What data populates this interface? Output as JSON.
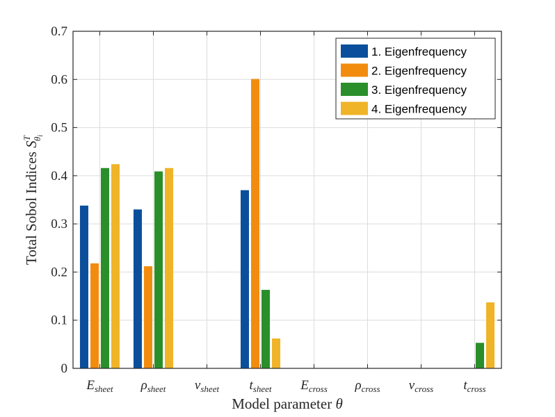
{
  "chart_data": {
    "type": "bar",
    "categories": [
      {
        "base": "E",
        "sub": "sheet"
      },
      {
        "base": "ρ",
        "sub": "sheet"
      },
      {
        "base": "ν",
        "sub": "sheet"
      },
      {
        "base": "t",
        "sub": "sheet"
      },
      {
        "base": "E",
        "sub": "cross"
      },
      {
        "base": "ρ",
        "sub": "cross"
      },
      {
        "base": "ν",
        "sub": "cross"
      },
      {
        "base": "t",
        "sub": "cross"
      }
    ],
    "series": [
      {
        "name": "1. Eigenfrequency",
        "color": "#0b4f9c",
        "values": [
          0.338,
          0.33,
          0,
          0.37,
          0,
          0,
          0,
          0
        ]
      },
      {
        "name": "2. Eigenfrequency",
        "color": "#f28c0f",
        "values": [
          0.218,
          0.212,
          0,
          0.601,
          0,
          0,
          0,
          0
        ]
      },
      {
        "name": "3. Eigenfrequency",
        "color": "#2a8f2a",
        "values": [
          0.416,
          0.409,
          0,
          0.163,
          0,
          0,
          0,
          0.053
        ]
      },
      {
        "name": "4. Eigenfrequency",
        "color": "#f0b429",
        "values": [
          0.424,
          0.416,
          0,
          0.062,
          0,
          0,
          0,
          0.137
        ]
      }
    ],
    "xlabel": "Model parameter θ",
    "ylabel": {
      "text": "Total Sobol Indices S",
      "sup": "T",
      "sub": "θ",
      "subsub": "i"
    },
    "ylim": [
      0,
      0.7
    ],
    "yticks": [
      "0",
      "0.1",
      "0.2",
      "0.3",
      "0.4",
      "0.5",
      "0.6",
      "0.7"
    ],
    "grid": true,
    "legend_position": "top-right"
  }
}
